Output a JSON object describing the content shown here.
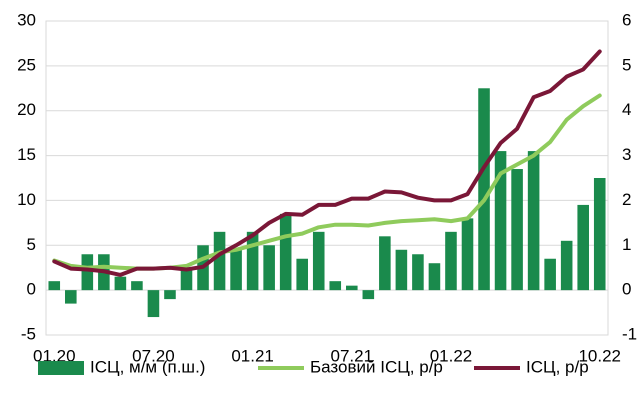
{
  "chart_data": {
    "type": "bar-line",
    "categories": [
      "01.20",
      null,
      null,
      null,
      null,
      null,
      "07.20",
      null,
      null,
      null,
      null,
      null,
      "01.21",
      null,
      null,
      null,
      null,
      null,
      "07.21",
      null,
      null,
      null,
      null,
      null,
      "01.22",
      null,
      null,
      null,
      null,
      null,
      null,
      null,
      null,
      "10.22"
    ],
    "series": [
      {
        "name": "ІСЦ, м/м (п.ш.)",
        "type": "bar",
        "axis": "y2",
        "color": "#1a8a4c",
        "values": [
          0.2,
          -0.3,
          0.8,
          0.8,
          0.3,
          0.2,
          -0.6,
          -0.2,
          0.5,
          1.0,
          1.3,
          0.9,
          1.3,
          1.0,
          1.7,
          0.7,
          1.3,
          0.2,
          0.1,
          -0.2,
          1.2,
          0.9,
          0.8,
          0.6,
          1.3,
          1.6,
          4.5,
          3.1,
          2.7,
          3.1,
          0.7,
          1.1,
          1.9,
          2.5
        ]
      },
      {
        "name": "Базовий ІСЦ, р/р",
        "type": "line",
        "color": "#8fcb5c",
        "values": [
          3.3,
          2.7,
          2.5,
          2.6,
          2.5,
          2.4,
          2.4,
          2.5,
          2.7,
          3.5,
          4.2,
          4.5,
          5.0,
          5.5,
          6.0,
          6.3,
          7.0,
          7.3,
          7.3,
          7.2,
          7.5,
          7.7,
          7.8,
          7.9,
          7.7,
          8.0,
          10.0,
          13.0,
          14.0,
          15.0,
          16.5,
          19.0,
          20.5,
          21.7
        ]
      },
      {
        "name": "ІСЦ, р/р",
        "type": "line",
        "color": "#7a1737",
        "values": [
          3.2,
          2.4,
          2.3,
          2.1,
          1.7,
          2.4,
          2.4,
          2.5,
          2.3,
          2.6,
          4.0,
          5.0,
          6.1,
          7.5,
          8.5,
          8.4,
          9.5,
          9.5,
          10.2,
          10.2,
          11.0,
          10.9,
          10.3,
          10.0,
          10.0,
          10.7,
          13.7,
          16.4,
          18.0,
          21.5,
          22.2,
          23.8,
          24.6,
          26.6
        ]
      }
    ],
    "ylim": [
      -5,
      30
    ],
    "yticks": [
      -5,
      0,
      5,
      10,
      15,
      20,
      25,
      30
    ],
    "y2lim": [
      -1,
      6
    ],
    "y2ticks": [
      -1,
      0,
      1,
      2,
      3,
      4,
      5,
      6
    ],
    "grid": true,
    "legend": "bottom"
  }
}
